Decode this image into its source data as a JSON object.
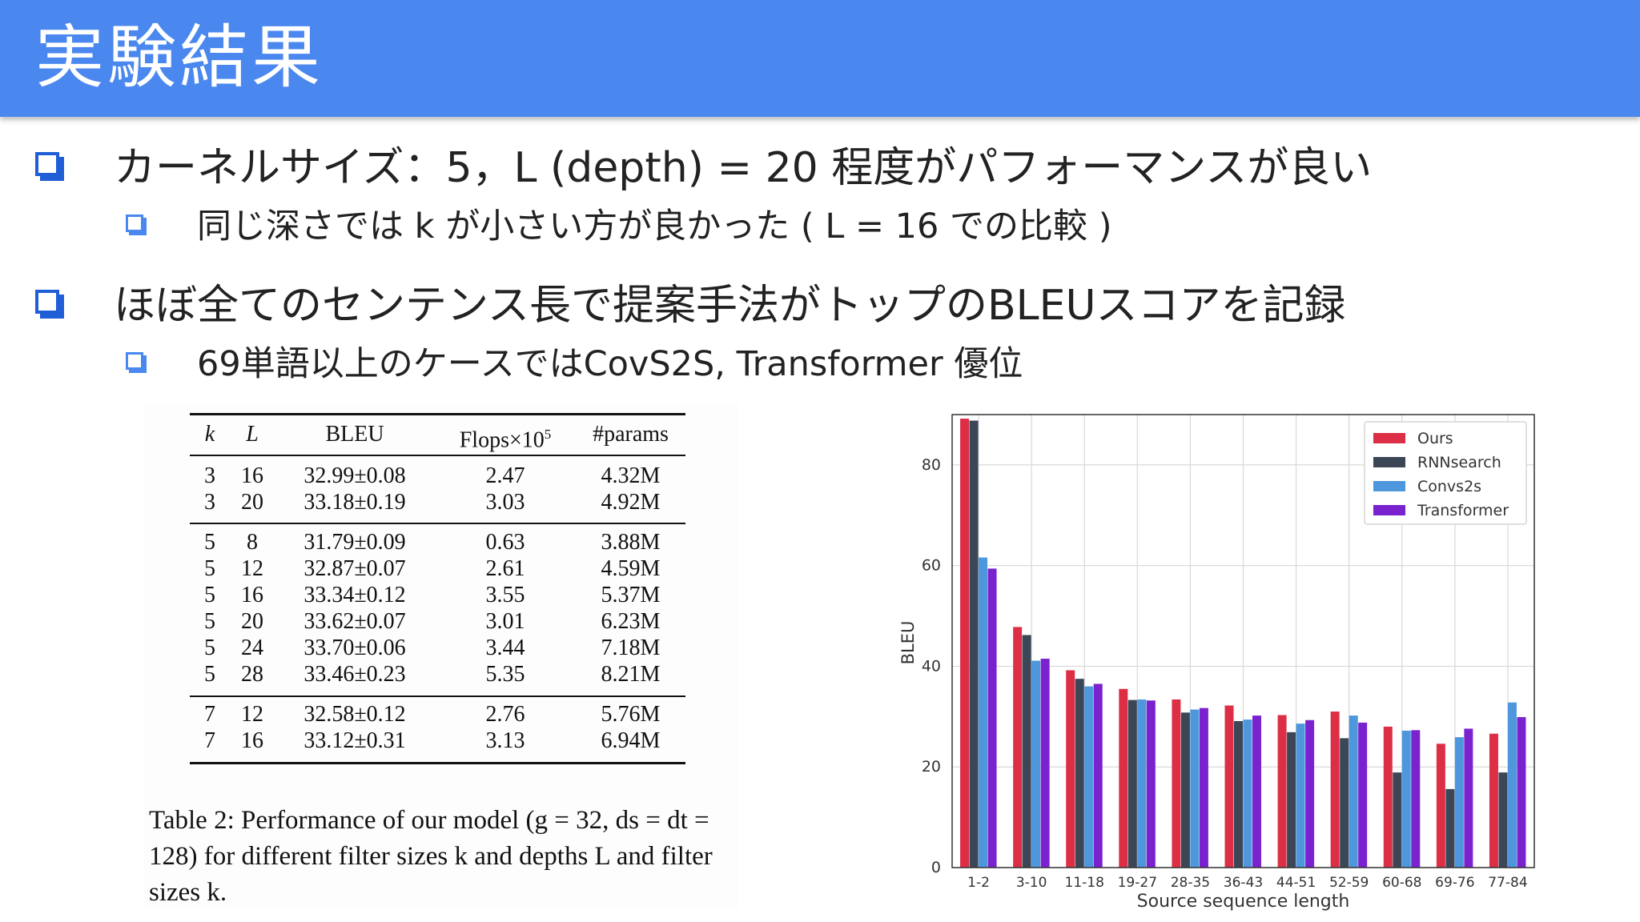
{
  "header": {
    "title": "実験結果"
  },
  "bullets": {
    "b1": "カーネルサイズ：5，L (depth) = 20 程度がパフォーマンスが良い",
    "b1_sub": "同じ深さでは k が小さい方が良かった ( L = 16 での比較 )",
    "b2": "ほぼ全てのセンテンス長で提案手法がトップのBLEUスコアを記録",
    "b2_sub": "69単語以上のケースではCovS2S, Transformer 優位"
  },
  "table": {
    "headers": {
      "k": "k",
      "L": "L",
      "bleu": "BLEU",
      "flops": "Flops×10",
      "flops_exp": "5",
      "params": "#params"
    },
    "groups": [
      [
        {
          "k": "3",
          "L": "16",
          "bleu": "32.99±0.08",
          "flops": "2.47",
          "params": "4.32M"
        },
        {
          "k": "3",
          "L": "20",
          "bleu": "33.18±0.19",
          "flops": "3.03",
          "params": "4.92M"
        }
      ],
      [
        {
          "k": "5",
          "L": "8",
          "bleu": "31.79±0.09",
          "flops": "0.63",
          "params": "3.88M"
        },
        {
          "k": "5",
          "L": "12",
          "bleu": "32.87±0.07",
          "flops": "2.61",
          "params": "4.59M"
        },
        {
          "k": "5",
          "L": "16",
          "bleu": "33.34±0.12",
          "flops": "3.55",
          "params": "5.37M"
        },
        {
          "k": "5",
          "L": "20",
          "bleu": "33.62±0.07",
          "flops": "3.01",
          "params": "6.23M"
        },
        {
          "k": "5",
          "L": "24",
          "bleu": "33.70±0.06",
          "flops": "3.44",
          "params": "7.18M"
        },
        {
          "k": "5",
          "L": "28",
          "bleu": "33.46±0.23",
          "flops": "5.35",
          "params": "8.21M"
        }
      ],
      [
        {
          "k": "7",
          "L": "12",
          "bleu": "32.58±0.12",
          "flops": "2.76",
          "params": "5.76M"
        },
        {
          "k": "7",
          "L": "16",
          "bleu": "33.12±0.31",
          "flops": "3.13",
          "params": "6.94M"
        }
      ]
    ],
    "caption": "Table 2: Performance of our model (g = 32, ds = dt = 128) for different filter sizes k and depths L and filter sizes k."
  },
  "chart_data": {
    "type": "bar",
    "xlabel": "Source sequence length",
    "ylabel": "BLEU",
    "ylim": [
      0,
      90
    ],
    "yticks": [
      0,
      20,
      40,
      60,
      80
    ],
    "grid": true,
    "legend_position": "top-right",
    "categories": [
      "1-2",
      "3-10",
      "11-18",
      "19-27",
      "28-35",
      "36-43",
      "44-51",
      "52-59",
      "60-68",
      "69-76",
      "77-84"
    ],
    "series": [
      {
        "name": "Ours",
        "color": "#dc2f45",
        "values": [
          89.2,
          47.8,
          39.2,
          35.5,
          33.4,
          32.2,
          30.3,
          31.0,
          28.0,
          24.6,
          26.6
        ]
      },
      {
        "name": "RNNsearch",
        "color": "#3b4656",
        "values": [
          88.8,
          46.2,
          37.5,
          33.3,
          30.8,
          29.1,
          26.9,
          25.7,
          18.9,
          15.6,
          18.9
        ]
      },
      {
        "name": "Convs2s",
        "color": "#4e97dc",
        "values": [
          61.6,
          41.1,
          36.0,
          33.4,
          31.4,
          29.4,
          28.6,
          30.2,
          27.2,
          25.9,
          32.8
        ]
      },
      {
        "name": "Transformer",
        "color": "#7b22cf",
        "values": [
          59.4,
          41.5,
          36.5,
          33.2,
          31.7,
          30.2,
          29.3,
          28.8,
          27.3,
          27.6,
          29.9
        ]
      }
    ]
  }
}
